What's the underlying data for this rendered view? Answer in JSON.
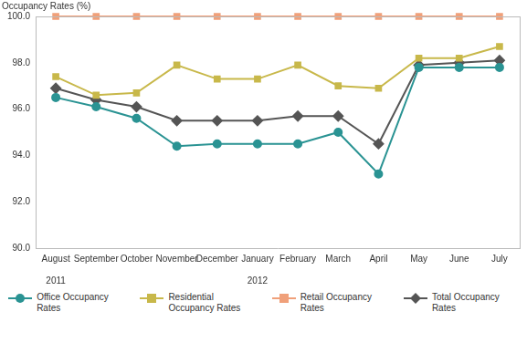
{
  "chart_data": {
    "type": "line",
    "y_label": "Occupancy Rates (%)",
    "categories": [
      "August",
      "September",
      "October",
      "November",
      "December",
      "January",
      "February",
      "March",
      "April",
      "May",
      "June",
      "July"
    ],
    "years": [
      "2011",
      null,
      null,
      null,
      null,
      "2012",
      null,
      null,
      null,
      null,
      null,
      null
    ],
    "ylim": [
      90,
      100
    ],
    "yticks": [
      {
        "value": 90,
        "label": "90.0"
      },
      {
        "value": 92,
        "label": "92.0"
      },
      {
        "value": 94,
        "label": "94.0"
      },
      {
        "value": 96,
        "label": "96.0"
      },
      {
        "value": 98,
        "label": "98.0"
      },
      {
        "value": 100,
        "label": "100.0"
      }
    ],
    "grid": false,
    "legend": "bottom",
    "series": [
      {
        "name": "Office Occupancy Rates",
        "color": "#2a9393",
        "marker": "circle",
        "values": [
          96.5,
          96.1,
          95.6,
          94.4,
          94.5,
          94.5,
          94.5,
          95.0,
          93.2,
          97.8,
          97.8,
          97.8
        ]
      },
      {
        "name": "Residential Occupancy Rates",
        "color": "#c8b84a",
        "marker": "square",
        "values": [
          97.4,
          96.6,
          96.7,
          97.9,
          97.3,
          97.3,
          97.9,
          97.0,
          96.9,
          98.2,
          98.2,
          98.7
        ]
      },
      {
        "name": "Retail Occupancy Rates",
        "color": "#f0a07a",
        "marker": "square",
        "values": [
          100,
          100,
          100,
          100,
          100,
          100,
          100,
          100,
          100,
          100,
          100,
          100
        ]
      },
      {
        "name": "Total Occupancy Rates",
        "color": "#555555",
        "marker": "diamond",
        "values": [
          96.9,
          96.4,
          96.1,
          95.5,
          95.5,
          95.5,
          95.7,
          95.7,
          94.5,
          97.9,
          98.0,
          98.1
        ]
      }
    ]
  }
}
